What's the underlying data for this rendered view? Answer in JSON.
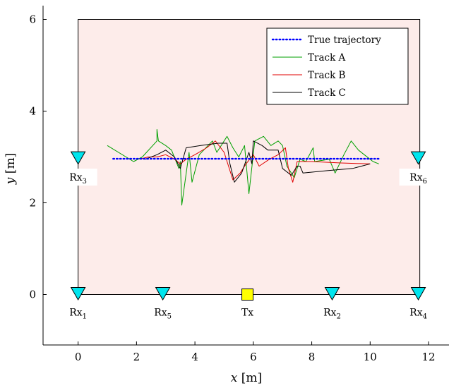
{
  "chart_data": {
    "type": "line",
    "xlabel": {
      "var": "x",
      "unit": " [m]"
    },
    "ylabel": {
      "var": "y",
      "unit": " [m]"
    },
    "xlim": [
      -1.2,
      12.7
    ],
    "ylim": [
      -1.1,
      6.3
    ],
    "x_ticks": [
      0,
      2,
      4,
      6,
      8,
      10,
      12
    ],
    "y_ticks": [
      0,
      2,
      4,
      6
    ],
    "grid": false,
    "legend_position": "top-right",
    "room": {
      "x": [
        0,
        11.7
      ],
      "y": [
        0,
        6
      ],
      "fill": "#fdecea"
    },
    "series": [
      {
        "name": "True trajectory",
        "color": "#0000ff",
        "dashed": true,
        "points": [
          [
            1.2,
            2.96
          ],
          [
            10.3,
            2.96
          ]
        ]
      },
      {
        "name": "Track A",
        "color": "#00a000",
        "dashed": false,
        "points": [
          [
            1.0,
            3.25
          ],
          [
            1.9,
            2.9
          ],
          [
            2.2,
            3.0
          ],
          [
            2.7,
            3.35
          ],
          [
            2.7,
            3.6
          ],
          [
            2.75,
            3.35
          ],
          [
            3.0,
            3.25
          ],
          [
            3.2,
            3.15
          ],
          [
            3.45,
            2.75
          ],
          [
            3.5,
            2.9
          ],
          [
            3.55,
            1.95
          ],
          [
            3.8,
            3.1
          ],
          [
            3.9,
            2.45
          ],
          [
            4.15,
            3.05
          ],
          [
            4.6,
            3.35
          ],
          [
            4.75,
            3.1
          ],
          [
            5.1,
            3.45
          ],
          [
            5.3,
            3.2
          ],
          [
            5.5,
            3.0
          ],
          [
            5.7,
            3.25
          ],
          [
            5.85,
            2.2
          ],
          [
            6.05,
            3.35
          ],
          [
            6.35,
            3.45
          ],
          [
            6.6,
            3.25
          ],
          [
            6.85,
            3.35
          ],
          [
            7.0,
            3.25
          ],
          [
            7.15,
            2.8
          ],
          [
            7.4,
            2.55
          ],
          [
            7.6,
            2.95
          ],
          [
            7.8,
            2.9
          ],
          [
            8.05,
            3.2
          ],
          [
            8.1,
            2.9
          ],
          [
            8.6,
            2.95
          ],
          [
            8.8,
            2.65
          ],
          [
            9.1,
            3.05
          ],
          [
            9.35,
            3.35
          ],
          [
            9.6,
            3.15
          ],
          [
            9.8,
            3.05
          ],
          [
            10.1,
            2.9
          ],
          [
            10.3,
            2.85
          ]
        ]
      },
      {
        "name": "Track B",
        "color": "#e00000",
        "dashed": false,
        "points": [
          [
            2.1,
            2.95
          ],
          [
            2.4,
            3.0
          ],
          [
            2.7,
            3.0
          ],
          [
            3.0,
            3.05
          ],
          [
            3.3,
            2.95
          ],
          [
            3.5,
            2.85
          ],
          [
            3.7,
            2.95
          ],
          [
            4.0,
            3.05
          ],
          [
            4.4,
            3.2
          ],
          [
            4.7,
            3.35
          ],
          [
            5.0,
            3.1
          ],
          [
            5.3,
            2.5
          ],
          [
            5.55,
            2.65
          ],
          [
            5.75,
            2.85
          ],
          [
            6.0,
            3.05
          ],
          [
            6.2,
            2.8
          ],
          [
            6.55,
            2.95
          ],
          [
            6.85,
            3.05
          ],
          [
            7.1,
            3.2
          ],
          [
            7.2,
            2.75
          ],
          [
            7.35,
            2.45
          ],
          [
            7.5,
            2.9
          ],
          [
            8.0,
            2.9
          ],
          [
            9.0,
            2.87
          ],
          [
            10.0,
            2.85
          ]
        ]
      },
      {
        "name": "Track C",
        "color": "#000000",
        "dashed": false,
        "points": [
          [
            2.3,
            2.95
          ],
          [
            2.7,
            3.05
          ],
          [
            3.0,
            3.15
          ],
          [
            3.3,
            3.0
          ],
          [
            3.5,
            2.75
          ],
          [
            3.7,
            3.2
          ],
          [
            4.2,
            3.25
          ],
          [
            4.8,
            3.3
          ],
          [
            5.1,
            3.3
          ],
          [
            5.2,
            2.85
          ],
          [
            5.35,
            2.45
          ],
          [
            5.6,
            2.65
          ],
          [
            5.85,
            3.1
          ],
          [
            5.95,
            2.85
          ],
          [
            6.0,
            3.35
          ],
          [
            6.3,
            3.25
          ],
          [
            6.5,
            3.15
          ],
          [
            6.85,
            3.15
          ],
          [
            7.0,
            2.75
          ],
          [
            7.3,
            2.6
          ],
          [
            7.5,
            2.8
          ],
          [
            7.6,
            2.8
          ],
          [
            7.7,
            2.65
          ],
          [
            8.5,
            2.7
          ],
          [
            9.4,
            2.75
          ],
          [
            10.0,
            2.85
          ]
        ]
      }
    ],
    "markers": [
      {
        "label_base": "Rx",
        "label_sub": "1",
        "x": 0,
        "y": 0,
        "shape": "triangle-down",
        "color": "#00e5ee",
        "label_pos": "below"
      },
      {
        "label_base": "Rx",
        "label_sub": "5",
        "x": 2.9,
        "y": 0,
        "shape": "triangle-down",
        "color": "#00e5ee",
        "label_pos": "below"
      },
      {
        "label_base": "Tx",
        "label_sub": "",
        "x": 5.8,
        "y": 0,
        "shape": "square",
        "color": "#ffff00",
        "label_pos": "below"
      },
      {
        "label_base": "Rx",
        "label_sub": "2",
        "x": 8.7,
        "y": 0,
        "shape": "triangle-down",
        "color": "#00e5ee",
        "label_pos": "below"
      },
      {
        "label_base": "Rx",
        "label_sub": "4",
        "x": 11.65,
        "y": 0,
        "shape": "triangle-down",
        "color": "#00e5ee",
        "label_pos": "below"
      },
      {
        "label_base": "Rx",
        "label_sub": "3",
        "x": 0,
        "y": 2.96,
        "shape": "triangle-down",
        "color": "#00e5ee",
        "label_pos": "below"
      },
      {
        "label_base": "Rx",
        "label_sub": "6",
        "x": 11.65,
        "y": 2.96,
        "shape": "triangle-down",
        "color": "#00e5ee",
        "label_pos": "below"
      }
    ]
  }
}
